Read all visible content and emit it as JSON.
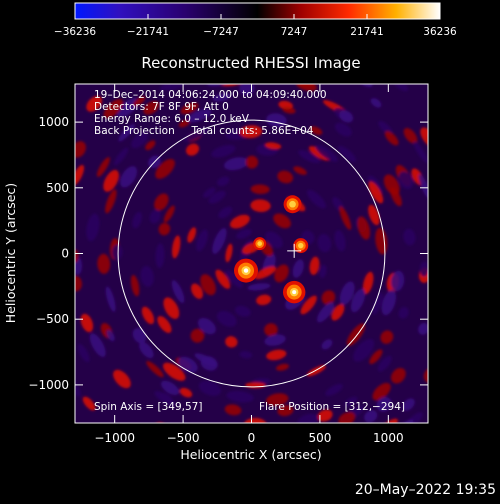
{
  "chart_data": {
    "type": "heatmap",
    "title": "Reconstructed RHESSI Image",
    "xlabel": "Heliocentric X (arcsec)",
    "ylabel": "Heliocentric Y (arcsec)",
    "xlim": [
      -1290,
      1290
    ],
    "ylim": [
      -1290,
      1290
    ],
    "x_ticks": [
      -1000,
      -500,
      0,
      500,
      1000
    ],
    "y_ticks": [
      -1000,
      -500,
      0,
      500,
      1000
    ],
    "x_tick_labels": [
      "−1000",
      "−500",
      "0",
      "500",
      "1000"
    ],
    "y_tick_labels": [
      "−1000",
      "−500",
      "0",
      "500",
      "1000"
    ],
    "colorbar": {
      "range": [
        -36236,
        36236
      ],
      "tick_values": [
        -36236,
        -21741,
        -7247,
        7247,
        21741,
        36236
      ],
      "tick_labels": [
        "−36236",
        "−21741",
        "−7247",
        "7247",
        "21741",
        "36236"
      ],
      "colors": [
        "#0018ff",
        "#2a0070",
        "#000000",
        "#c00000",
        "#ff6a00",
        "#ffffff"
      ]
    },
    "annotations": {
      "line1": "19–Dec–2014 04:06:24.000 to 04:09:40.000",
      "line2": "Detectors: 7F 8F 9F, Att 0",
      "line3": "Energy Range: 6.0 – 12.0 keV",
      "line4": "Back Projection     Total counts: 5.86E+04",
      "spin_axis": "Spin Axis = [349,57]",
      "flare_position": "Flare Position = [312,−294]"
    },
    "solar_limb_radius_arcsec": 975,
    "marker": {
      "x": 312,
      "y": 20
    },
    "sources": [
      {
        "x": -40,
        "y": -130,
        "value": 36236
      },
      {
        "x": 312,
        "y": -294,
        "value": 33000
      },
      {
        "x": 300,
        "y": 375,
        "value": 24000
      },
      {
        "x": 360,
        "y": 60,
        "value": 18000
      },
      {
        "x": 60,
        "y": 75,
        "value": 14000
      }
    ],
    "grid": false,
    "footer_date": "20–May–2022 19:35"
  }
}
